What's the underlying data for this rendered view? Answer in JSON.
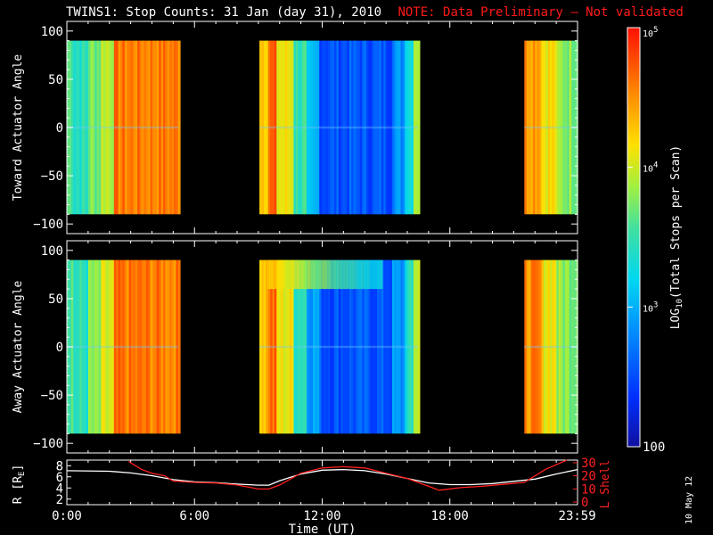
{
  "title": "TWINS1: Stop Counts: 31 Jan (day  31), 2010",
  "note": "NOTE: Data Preliminary – Not validated",
  "side_date": "10 May 12",
  "colors": {
    "background": "#000000",
    "axes": "#ffffff",
    "note": "#ff1a1a",
    "r_line": "#ffffff",
    "lshell_line": "#ff2020"
  },
  "chart_data": [
    {
      "type": "heatmap",
      "panel": "toward",
      "ylabel": "Toward Actuator Angle",
      "xlim": [
        0,
        24
      ],
      "ylim": [
        -110,
        110
      ],
      "y_ticks": [
        100,
        50,
        0,
        -50,
        -100
      ],
      "data_y_range": [
        -90,
        90
      ],
      "data_segments": [
        {
          "start_hour": 0.0,
          "end_hour": 5.25
        },
        {
          "start_hour": 9.05,
          "end_hour": 16.5
        },
        {
          "start_hour": 21.5,
          "end_hour": 24.0
        }
      ]
    },
    {
      "type": "heatmap",
      "panel": "away",
      "ylabel": "Away Actuator Angle",
      "xlim": [
        0,
        24
      ],
      "ylim": [
        -110,
        110
      ],
      "y_ticks": [
        100,
        50,
        0,
        -50,
        -100
      ],
      "data_y_range": [
        -90,
        90
      ],
      "data_segments": [
        {
          "start_hour": 0.0,
          "end_hour": 5.25
        },
        {
          "start_hour": 9.05,
          "end_hour": 16.5
        },
        {
          "start_hour": 21.5,
          "end_hour": 24.0
        }
      ]
    },
    {
      "type": "line",
      "panel": "orbit",
      "xlabel": "Time (UT)",
      "x_tick_labels": [
        "0:00",
        "6:00",
        "12:00",
        "18:00",
        "23:59"
      ],
      "x_tick_hours": [
        0,
        6,
        12,
        18,
        23.983
      ],
      "xlim": [
        0,
        24
      ],
      "left_axis": {
        "label": "R [R",
        "label_sub": "E",
        "label_end": "]",
        "ylim": [
          1,
          9
        ],
        "ticks": [
          8,
          6,
          4,
          2
        ]
      },
      "right_axis": {
        "label": "L Shell",
        "ylim": [
          -2,
          32
        ],
        "ticks": [
          30,
          20,
          10,
          0
        ]
      },
      "series": [
        {
          "axis": "left",
          "x": [
            0,
            2,
            3,
            4,
            5,
            6,
            7,
            8,
            9,
            9.5,
            10,
            11,
            12,
            13,
            14,
            15,
            16,
            17,
            18,
            19,
            20,
            21,
            22,
            23,
            24
          ],
          "y": [
            7.1,
            7.0,
            6.7,
            6.2,
            5.5,
            5.1,
            4.95,
            4.7,
            4.5,
            4.5,
            5.3,
            6.5,
            7.2,
            7.3,
            7.1,
            6.5,
            5.7,
            4.9,
            4.6,
            4.6,
            4.8,
            5.2,
            5.6,
            6.5,
            7.3
          ]
        },
        {
          "axis": "right",
          "x": [
            2.9,
            3.5,
            4.0,
            4.6,
            5.0,
            6.0,
            7.0,
            8.0,
            9.0,
            9.5,
            10.0,
            11.0,
            12.0,
            13.0,
            14.0,
            15.0,
            16.0,
            17.0,
            17.5,
            18.5,
            19.5,
            20.5,
            21.5,
            22.5,
            23.5
          ],
          "y": [
            31,
            25,
            22,
            20,
            16,
            15,
            14.5,
            13,
            10,
            10,
            13,
            22,
            26,
            27,
            26,
            22,
            18,
            12,
            9,
            11,
            12,
            13.5,
            15,
            25,
            33
          ]
        }
      ]
    },
    {
      "type": "heatmap",
      "panel": "colorbar",
      "label": "LOG",
      "label_sub": "10",
      "label_end": "(Total Stops per Scan)",
      "scale": "log",
      "range": [
        100,
        100000
      ],
      "tick_labels": [
        {
          "base": "10",
          "exp": "5",
          "value": 100000
        },
        {
          "base": "10",
          "exp": "4",
          "value": 10000
        },
        {
          "base": "10",
          "exp": "3",
          "value": 1000
        },
        {
          "plain": "100",
          "value": 100
        }
      ]
    }
  ]
}
